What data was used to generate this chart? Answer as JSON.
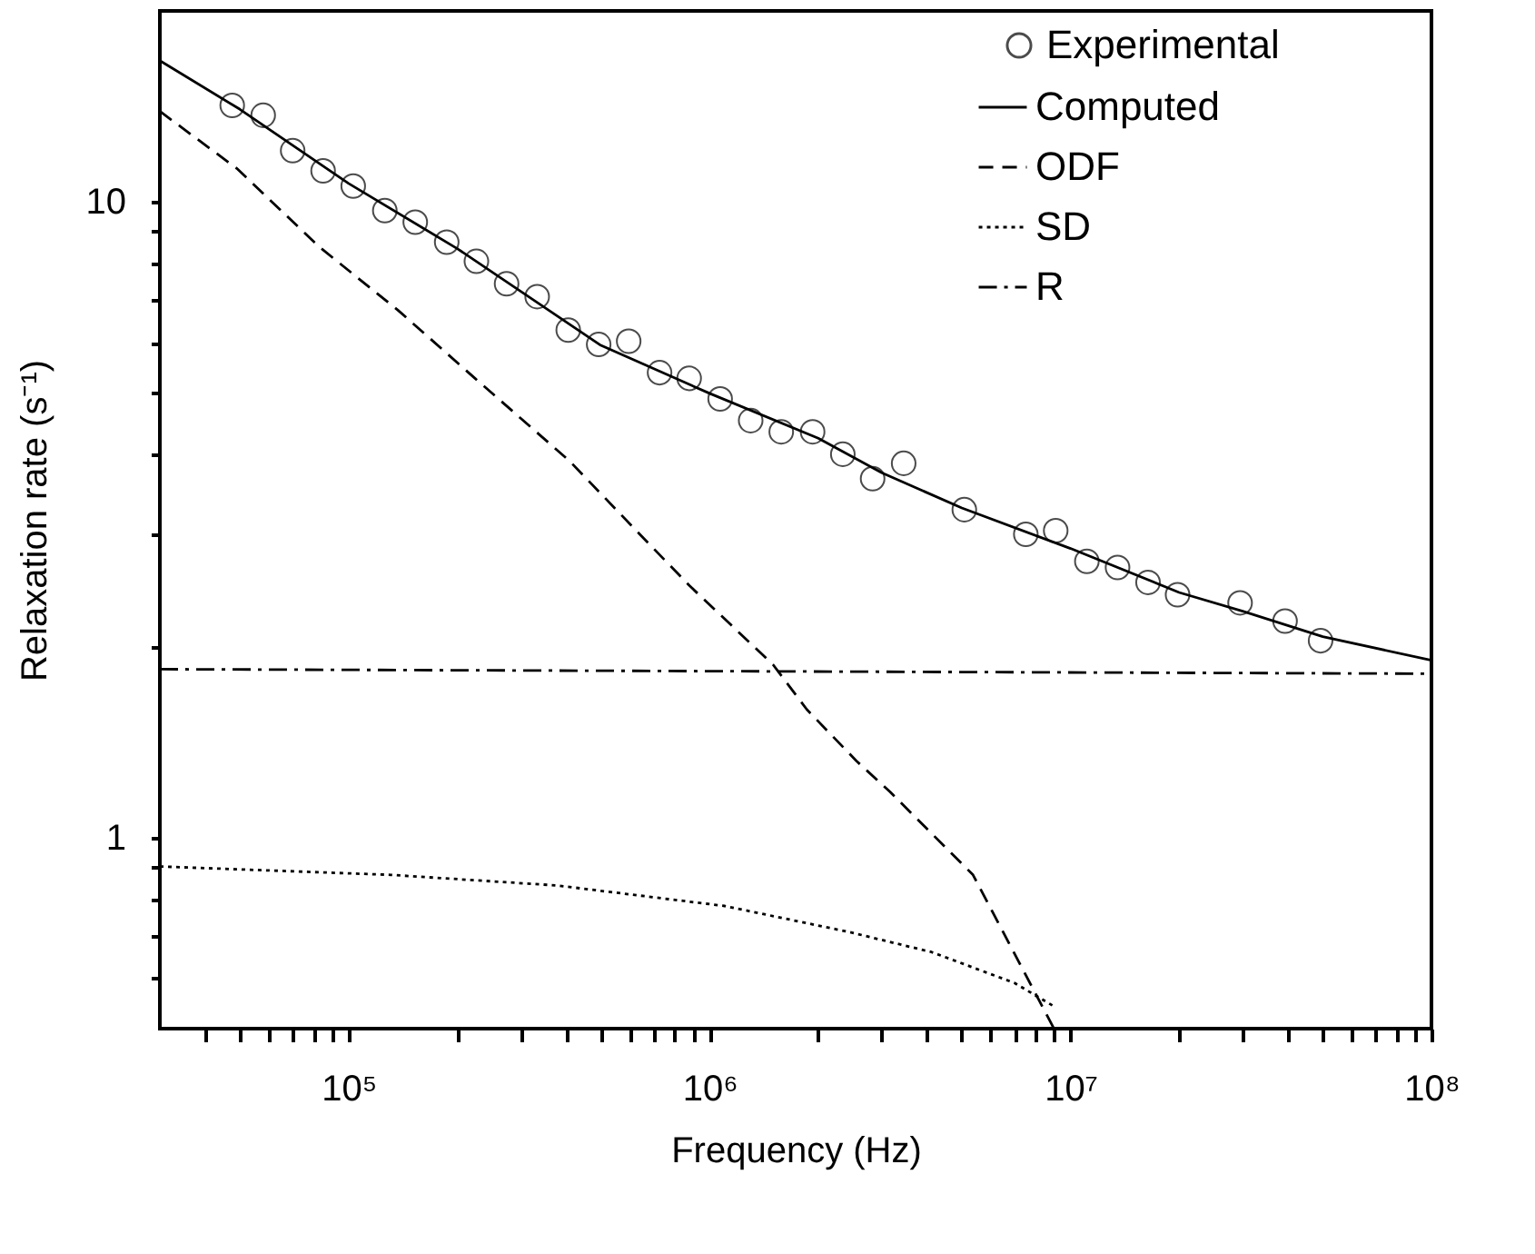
{
  "chart_data": {
    "type": "scatter",
    "xlabel": "Frequency (Hz)",
    "ylabel": "Relaxation rate  (s⁻¹)",
    "log": "xy",
    "legend": "top right",
    "xlim": [
      30000,
      100000000
    ],
    "ylim": [
      0.5,
      20
    ],
    "xticks": [
      {
        "value": 40000,
        "label": null
      },
      {
        "value": 50000,
        "label": null
      },
      {
        "value": 60000,
        "label": null
      },
      {
        "value": 70000,
        "label": null
      },
      {
        "value": 80000,
        "label": null
      },
      {
        "value": 90000,
        "label": null
      },
      {
        "value": 100000,
        "label": "10⁵"
      },
      {
        "value": 200000,
        "label": null
      },
      {
        "value": 300000,
        "label": null
      },
      {
        "value": 400000,
        "label": null
      },
      {
        "value": 500000,
        "label": null
      },
      {
        "value": 600000,
        "label": null
      },
      {
        "value": 700000,
        "label": null
      },
      {
        "value": 800000,
        "label": null
      },
      {
        "value": 900000,
        "label": null
      },
      {
        "value": 1000000,
        "label": "10⁶"
      },
      {
        "value": 2000000,
        "label": null
      },
      {
        "value": 3000000,
        "label": null
      },
      {
        "value": 4000000,
        "label": null
      },
      {
        "value": 5000000,
        "label": null
      },
      {
        "value": 6000000,
        "label": null
      },
      {
        "value": 7000000,
        "label": null
      },
      {
        "value": 8000000,
        "label": null
      },
      {
        "value": 9000000,
        "label": null
      },
      {
        "value": 10000000,
        "label": "10⁷"
      },
      {
        "value": 20000000,
        "label": null
      },
      {
        "value": 30000000,
        "label": null
      },
      {
        "value": 40000000,
        "label": null
      },
      {
        "value": 50000000,
        "label": null
      },
      {
        "value": 60000000,
        "label": null
      },
      {
        "value": 70000000,
        "label": null
      },
      {
        "value": 80000000,
        "label": null
      },
      {
        "value": 90000000,
        "label": null
      },
      {
        "value": 100000000,
        "label": "10⁸"
      }
    ],
    "yticks": [
      {
        "value": 0.6,
        "label": null
      },
      {
        "value": 0.7,
        "label": null
      },
      {
        "value": 0.8,
        "label": null
      },
      {
        "value": 0.9,
        "label": null
      },
      {
        "value": 1,
        "label": "1"
      },
      {
        "value": 2,
        "label": null
      },
      {
        "value": 3,
        "label": null
      },
      {
        "value": 4,
        "label": null
      },
      {
        "value": 5,
        "label": null
      },
      {
        "value": 6,
        "label": null
      },
      {
        "value": 7,
        "label": null
      },
      {
        "value": 8,
        "label": null
      },
      {
        "value": 9,
        "label": null
      },
      {
        "value": 10,
        "label": "10"
      }
    ],
    "series": [
      {
        "name": "Experimental",
        "marker": "circle",
        "color": "#000000",
        "x": [
          47600,
          58000,
          70000,
          85000,
          103000,
          126000,
          153000,
          187000,
          226000,
          274000,
          333000,
          406000,
          493000,
          597000,
          727000,
          878000,
          1070000,
          1300000,
          1580000,
          1930000,
          2340000,
          2830000,
          3450000,
          5080000,
          7520000,
          9100000,
          11100000,
          13500000,
          16400000,
          19800000,
          29500000,
          39300000,
          49300000
        ],
        "values": [
          14.2,
          13.7,
          12.05,
          11.2,
          10.6,
          9.7,
          9.3,
          8.65,
          8.07,
          7.44,
          7.1,
          6.29,
          5.97,
          6.04,
          5.39,
          5.28,
          4.9,
          4.53,
          4.35,
          4.35,
          4.01,
          3.67,
          3.88,
          3.28,
          3.0,
          3.04,
          2.72,
          2.66,
          2.52,
          2.41,
          2.34,
          2.19,
          2.04
        ]
      },
      {
        "name": "Computed",
        "type": "line",
        "line_style": "solid",
        "color": "#000000",
        "x": [
          30000,
          50000,
          100000,
          200000,
          500000,
          1000000,
          2000000,
          3000000,
          5000000,
          10000000,
          20000000,
          30000000,
          50000000,
          100000000
        ],
        "values": [
          16.7,
          14.0,
          10.7,
          8.45,
          5.95,
          5.0,
          4.25,
          3.75,
          3.3,
          2.85,
          2.43,
          2.27,
          2.07,
          1.9
        ]
      },
      {
        "name": "ODF",
        "type": "line",
        "line_style": "dashed",
        "color": "#000000",
        "x": [
          30000,
          49000,
          83000,
          137000,
          224000,
          410000,
          620000,
          880000,
          1500000,
          1860000,
          2550000,
          3160000,
          5370000,
          9000000
        ],
        "values": [
          13.9,
          11.3,
          8.5,
          6.76,
          5.28,
          3.91,
          3.06,
          2.49,
          1.87,
          1.59,
          1.32,
          1.18,
          0.873,
          0.5
        ]
      },
      {
        "name": "SD",
        "type": "line",
        "line_style": "dotted",
        "color": "#000000",
        "x": [
          30000,
          131000,
          379000,
          1100000,
          2430000,
          4120000,
          7000000,
          9100000
        ],
        "values": [
          0.9,
          0.873,
          0.84,
          0.78,
          0.71,
          0.66,
          0.59,
          0.54
        ]
      },
      {
        "name": "R",
        "type": "line",
        "line_style": "dashdot",
        "color": "#000000",
        "x": [
          30000,
          100000000
        ],
        "values": [
          1.84,
          1.81
        ]
      }
    ]
  }
}
